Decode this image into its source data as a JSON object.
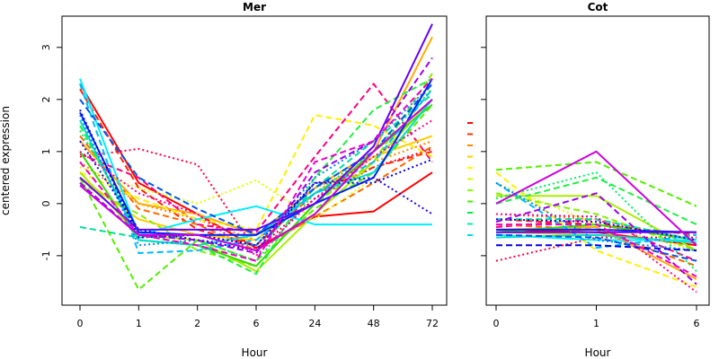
{
  "chart_data": [
    {
      "type": "line",
      "title": "Mer",
      "xlabel": "Hour",
      "ylabel": "centered expression",
      "categories": [
        "0",
        "1",
        "2",
        "6",
        "24",
        "48",
        "72"
      ],
      "ylim": [
        -1.95,
        3.6
      ],
      "yticks": [
        -1,
        0,
        1,
        2,
        3
      ],
      "grid": false,
      "series": [
        {
          "color": "#ff0000",
          "dash": "solid",
          "values": [
            2.3,
            0.4,
            -0.2,
            -0.85,
            -0.25,
            -0.15,
            0.6
          ]
        },
        {
          "color": "#ff0040",
          "dash": "dotted",
          "values": [
            0.9,
            1.05,
            0.75,
            -0.9,
            0.1,
            0.7,
            1.05
          ]
        },
        {
          "color": "#ff0080",
          "dash": "dashed",
          "values": [
            0.95,
            0.5,
            -0.4,
            -0.55,
            0.9,
            2.3,
            0.8
          ]
        },
        {
          "color": "#ff2200",
          "dash": "dashed",
          "values": [
            2.2,
            0.3,
            -0.5,
            -0.8,
            0.2,
            0.7,
            1.0
          ]
        },
        {
          "color": "#ff6600",
          "dash": "dashed",
          "values": [
            1.3,
            -0.1,
            -0.4,
            -0.9,
            -0.25,
            0.4,
            1.1
          ]
        },
        {
          "color": "#ff8800",
          "dash": "dotted",
          "values": [
            0.8,
            0.0,
            -0.3,
            -0.7,
            0.3,
            0.8,
            1.2
          ]
        },
        {
          "color": "#ffaa00",
          "dash": "solid",
          "values": [
            1.2,
            0.0,
            -0.2,
            -0.6,
            0.3,
            1.0,
            3.2
          ]
        },
        {
          "color": "#ffcc00",
          "dash": "solid",
          "values": [
            0.5,
            -0.3,
            -0.6,
            -0.7,
            0.2,
            0.9,
            1.3
          ]
        },
        {
          "color": "#ffee00",
          "dash": "dashed",
          "values": [
            0.6,
            0.1,
            -0.3,
            -0.5,
            1.7,
            1.5,
            0.9
          ]
        },
        {
          "color": "#ddff00",
          "dash": "dotted",
          "values": [
            0.7,
            0.3,
            0.0,
            0.45,
            -0.3,
            0.5,
            2.3
          ]
        },
        {
          "color": "#aaee00",
          "dash": "solid",
          "values": [
            0.6,
            -0.6,
            -0.7,
            -1.3,
            -0.2,
            0.8,
            2.0
          ]
        },
        {
          "color": "#88ee00",
          "dash": "dashed",
          "values": [
            0.4,
            -0.2,
            -0.9,
            -1.2,
            0.0,
            0.8,
            2.5
          ]
        },
        {
          "color": "#55ee00",
          "dash": "dashed",
          "values": [
            0.5,
            -1.65,
            -0.7,
            -1.1,
            -0.1,
            0.6,
            1.9
          ]
        },
        {
          "color": "#33dd00",
          "dash": "solid",
          "values": [
            1.0,
            -0.7,
            -0.8,
            -1.2,
            0.0,
            1.0,
            1.9
          ]
        },
        {
          "color": "#22ee44",
          "dash": "dashed",
          "values": [
            1.5,
            -0.6,
            -0.8,
            -1.35,
            0.5,
            1.8,
            2.4
          ]
        },
        {
          "color": "#00ee66",
          "dash": "dotted",
          "values": [
            1.4,
            -0.5,
            -0.7,
            -1.1,
            0.2,
            1.0,
            2.2
          ]
        },
        {
          "color": "#00dd99",
          "dash": "dashed",
          "values": [
            -0.45,
            -0.65,
            -0.6,
            -0.9,
            0.3,
            1.2,
            2.1
          ]
        },
        {
          "color": "#00ddcc",
          "dash": "solid",
          "values": [
            1.6,
            -0.7,
            -0.8,
            -0.6,
            0.2,
            0.6,
            2.0
          ]
        },
        {
          "color": "#00eeff",
          "dash": "solid",
          "values": [
            2.4,
            -0.6,
            -0.3,
            -0.05,
            -0.4,
            -0.4,
            -0.4
          ]
        },
        {
          "color": "#00bbff",
          "dash": "dashed",
          "values": [
            2.3,
            -0.95,
            -0.9,
            -0.7,
            0.2,
            0.8,
            2.2
          ]
        },
        {
          "color": "#0088ff",
          "dash": "dotted",
          "values": [
            1.7,
            -0.8,
            -0.7,
            -0.8,
            0.5,
            1.2,
            2.3
          ]
        },
        {
          "color": "#0055ee",
          "dash": "dashed",
          "values": [
            2.0,
            0.5,
            -0.1,
            -0.6,
            0.3,
            1.0,
            2.3
          ]
        },
        {
          "color": "#0022ff",
          "dash": "solid",
          "values": [
            1.75,
            -0.55,
            -0.6,
            -0.6,
            0.0,
            0.5,
            2.4
          ]
        },
        {
          "color": "#0000dd",
          "dash": "dotted",
          "values": [
            1.8,
            -0.65,
            -0.6,
            -0.8,
            0.4,
            0.4,
            0.85
          ]
        },
        {
          "color": "#2200ee",
          "dash": "dotted",
          "values": [
            1.2,
            -0.5,
            -0.7,
            -0.9,
            0.4,
            0.5,
            -0.2
          ]
        },
        {
          "color": "#6600ff",
          "dash": "solid",
          "values": [
            0.5,
            -0.5,
            -0.5,
            -0.5,
            0.0,
            1.1,
            3.45
          ]
        },
        {
          "color": "#9900ee",
          "dash": "dashed",
          "values": [
            0.4,
            -0.6,
            -0.7,
            -0.95,
            0.6,
            1.2,
            2.8
          ]
        },
        {
          "color": "#cc00dd",
          "dash": "solid",
          "values": [
            0.35,
            -0.6,
            -0.6,
            -0.9,
            -0.2,
            1.0,
            2.0
          ]
        },
        {
          "color": "#ee00cc",
          "dash": "dashed",
          "values": [
            0.8,
            -0.6,
            -0.8,
            -1.1,
            0.8,
            1.2,
            2.4
          ]
        },
        {
          "color": "#ff0099",
          "dash": "dotted",
          "values": [
            1.0,
            0.2,
            -0.2,
            -1.0,
            0.1,
            0.9,
            1.6
          ]
        }
      ]
    },
    {
      "type": "line",
      "title": "Cot",
      "xlabel": "Hour",
      "categories": [
        "0",
        "1",
        "6"
      ],
      "ylim": [
        -1.95,
        3.6
      ],
      "grid": false,
      "series": [
        {
          "color": "#ff0000",
          "dash": "solid",
          "values": [
            -0.5,
            -0.55,
            -0.8
          ]
        },
        {
          "color": "#ff0040",
          "dash": "dotted",
          "values": [
            -1.1,
            -0.65,
            -0.65
          ]
        },
        {
          "color": "#ff0080",
          "dash": "dashed",
          "values": [
            -0.45,
            -0.3,
            -1.1
          ]
        },
        {
          "color": "#ff2200",
          "dash": "dashed",
          "values": [
            -0.3,
            -0.4,
            -0.6
          ]
        },
        {
          "color": "#ff6600",
          "dash": "dashed",
          "values": [
            -0.4,
            -0.5,
            -1.2
          ]
        },
        {
          "color": "#ff8800",
          "dash": "dotted",
          "values": [
            -0.2,
            -0.3,
            -0.7
          ]
        },
        {
          "color": "#ffaa00",
          "dash": "solid",
          "values": [
            -0.5,
            -0.45,
            -1.45
          ]
        },
        {
          "color": "#ffcc00",
          "dash": "solid",
          "values": [
            -0.55,
            -0.6,
            -0.75
          ]
        },
        {
          "color": "#ffee00",
          "dash": "dashed",
          "values": [
            0.6,
            -0.9,
            -1.6
          ]
        },
        {
          "color": "#ddff00",
          "dash": "dotted",
          "values": [
            0.4,
            -0.4,
            -0.9
          ]
        },
        {
          "color": "#aaee00",
          "dash": "solid",
          "values": [
            0.15,
            0.15,
            -0.9
          ]
        },
        {
          "color": "#88ee00",
          "dash": "dashed",
          "values": [
            0.2,
            -0.2,
            -0.9
          ]
        },
        {
          "color": "#55ee00",
          "dash": "dashed",
          "values": [
            0.65,
            0.8,
            -0.05
          ]
        },
        {
          "color": "#33dd00",
          "dash": "solid",
          "values": [
            -0.55,
            -0.4,
            -0.7
          ]
        },
        {
          "color": "#22ee44",
          "dash": "dashed",
          "values": [
            0.0,
            0.5,
            -0.4
          ]
        },
        {
          "color": "#00ee66",
          "dash": "dotted",
          "values": [
            0.1,
            0.6,
            -1.3
          ]
        },
        {
          "color": "#00dd99",
          "dash": "dashed",
          "values": [
            -0.3,
            -0.3,
            -0.7
          ]
        },
        {
          "color": "#00ddcc",
          "dash": "solid",
          "values": [
            -0.65,
            -0.6,
            -0.75
          ]
        },
        {
          "color": "#00eeff",
          "dash": "solid",
          "values": [
            -0.6,
            -0.7,
            -0.7
          ]
        },
        {
          "color": "#00bbff",
          "dash": "dashed",
          "values": [
            0.4,
            -0.85,
            -0.6
          ]
        },
        {
          "color": "#0088ff",
          "dash": "dotted",
          "values": [
            0.4,
            -0.7,
            -0.9
          ]
        },
        {
          "color": "#0055ee",
          "dash": "dashed",
          "values": [
            -0.6,
            -0.65,
            -1.1
          ]
        },
        {
          "color": "#0022ff",
          "dash": "solid",
          "values": [
            -0.5,
            -0.5,
            -0.55
          ]
        },
        {
          "color": "#0000dd",
          "dash": "dashed",
          "values": [
            -0.8,
            -0.8,
            -0.9
          ]
        },
        {
          "color": "#2200ee",
          "dash": "dotted",
          "values": [
            -0.3,
            -0.35,
            -0.7
          ]
        },
        {
          "color": "#6600ff",
          "dash": "solid",
          "values": [
            -0.55,
            -0.55,
            -0.55
          ]
        },
        {
          "color": "#9900ee",
          "dash": "dashed",
          "values": [
            -0.35,
            0.2,
            -1.55
          ]
        },
        {
          "color": "#cc00dd",
          "dash": "solid",
          "values": [
            0.0,
            1.0,
            -0.8
          ]
        },
        {
          "color": "#ee00cc",
          "dash": "dashed",
          "values": [
            -0.4,
            -0.4,
            -1.4
          ]
        },
        {
          "color": "#ff0099",
          "dash": "dotted",
          "values": [
            -0.2,
            -0.25,
            -1.7
          ]
        }
      ]
    }
  ],
  "legend": {
    "placement": "between-panels",
    "colors": [
      "#ff0000",
      "#ff3300",
      "#ff8800",
      "#ffcc00",
      "#ffff00",
      "#ccff00",
      "#88ff00",
      "#44ee00",
      "#00ee44",
      "#00ee99",
      "#00dddd"
    ]
  }
}
